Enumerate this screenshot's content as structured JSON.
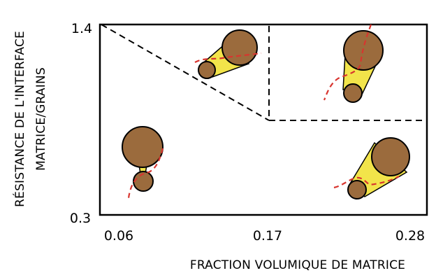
{
  "axes": {
    "x": {
      "title": "FRACTION VOLUMIQUE DE MATRICE",
      "ticks": [
        "0.06",
        "0.17",
        "0.28"
      ]
    },
    "y": {
      "title_line1": "RÉSISTANCE DE L'INTERFACE",
      "title_line2": "MATRICE/GRAINS",
      "ticks": [
        "1.4",
        "0.3"
      ]
    }
  },
  "regions": [
    {
      "name": "bottom-left",
      "description_visible": false
    },
    {
      "name": "upper-middle",
      "description_visible": false
    },
    {
      "name": "upper-right",
      "description_visible": false
    },
    {
      "name": "bottom-right",
      "description_visible": false
    }
  ],
  "colors": {
    "grain_fill": "#9b6b3d",
    "grain_stroke": "#000000",
    "matrix_bridge": "#f2e44a",
    "crack_path": "#d8352f",
    "boundary_line": "#000000",
    "frame": "#000000"
  },
  "legend": null
}
